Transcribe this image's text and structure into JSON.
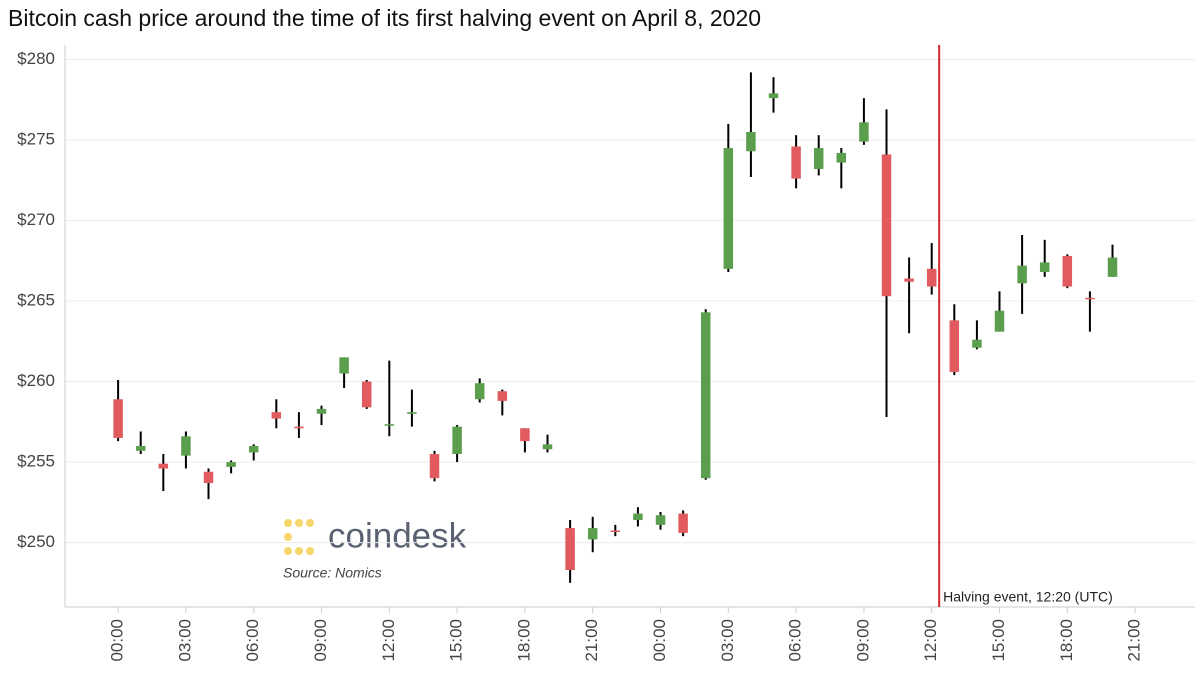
{
  "chart_data": {
    "type": "candlestick",
    "title": "Bitcoin cash price around the time of its first halving event on April 8, 2020",
    "x": [
      0,
      1,
      2,
      3,
      4,
      5,
      6,
      7,
      8,
      9,
      10,
      11,
      12,
      13,
      14,
      15,
      16,
      17,
      18,
      19,
      20,
      21,
      22,
      23,
      24,
      25,
      26,
      27,
      28,
      29,
      30,
      31,
      32,
      33,
      34,
      35,
      36,
      37,
      38,
      39,
      40,
      41,
      42,
      43,
      44
    ],
    "open": [
      258.9,
      255.7,
      254.9,
      255.4,
      254.4,
      254.7,
      255.6,
      258.1,
      257.2,
      258.0,
      260.5,
      260.0,
      257.3,
      258.0,
      255.5,
      255.5,
      258.9,
      259.4,
      257.1,
      255.8,
      250.9,
      250.2,
      250.75,
      251.4,
      251.1,
      251.8,
      254.0,
      267.0,
      274.3,
      277.6,
      274.6,
      273.2,
      273.6,
      274.9,
      274.1,
      266.4,
      267.0,
      263.8,
      262.1,
      263.1,
      266.1,
      266.8,
      267.8,
      265.2,
      266.5
    ],
    "high": [
      260.1,
      256.9,
      255.5,
      256.9,
      254.6,
      255.1,
      256.1,
      258.9,
      258.1,
      258.5,
      261.5,
      260.1,
      261.3,
      259.5,
      255.7,
      257.3,
      260.2,
      259.5,
      257.1,
      256.7,
      251.4,
      251.6,
      251.1,
      252.2,
      251.9,
      252.0,
      264.5,
      276.0,
      279.2,
      278.9,
      275.3,
      275.3,
      274.5,
      277.6,
      276.9,
      267.7,
      268.6,
      264.8,
      263.8,
      265.6,
      269.1,
      268.8,
      267.9,
      265.6,
      268.5
    ],
    "low": [
      256.3,
      255.5,
      253.2,
      254.6,
      252.7,
      254.3,
      255.1,
      257.1,
      256.5,
      257.3,
      259.6,
      258.3,
      256.6,
      257.2,
      253.8,
      255.0,
      258.7,
      257.9,
      255.6,
      255.6,
      247.5,
      249.4,
      250.4,
      251.0,
      250.8,
      250.4,
      253.9,
      266.8,
      272.7,
      276.7,
      272.0,
      272.8,
      272.0,
      274.7,
      257.8,
      263.0,
      265.4,
      260.4,
      262.0,
      263.1,
      264.2,
      266.5,
      265.8,
      263.1,
      266.5
    ],
    "close": [
      256.5,
      256.0,
      254.6,
      256.6,
      253.7,
      255.0,
      256.0,
      257.7,
      257.1,
      258.3,
      261.5,
      258.4,
      257.35,
      258.1,
      254.0,
      257.2,
      259.9,
      258.8,
      256.3,
      256.1,
      248.3,
      250.9,
      250.7,
      251.8,
      251.7,
      250.6,
      264.3,
      274.5,
      275.5,
      277.9,
      272.6,
      274.5,
      274.2,
      276.1,
      265.3,
      266.2,
      265.9,
      260.6,
      262.6,
      264.4,
      267.2,
      267.4,
      265.9,
      265.15,
      267.7
    ],
    "up_color": "#5b9e4d",
    "down_color": "#e05a5e",
    "wick_color": "#000000",
    "xlim": [
      -2.35,
      47.65
    ],
    "ylim": [
      246,
      280.9
    ],
    "yticks": [
      {
        "value": 250,
        "label": "$250"
      },
      {
        "value": 255,
        "label": "$255"
      },
      {
        "value": 260,
        "label": "$260"
      },
      {
        "value": 265,
        "label": "$265"
      },
      {
        "value": 270,
        "label": "$270"
      },
      {
        "value": 275,
        "label": "$275"
      },
      {
        "value": 280,
        "label": "$280"
      }
    ],
    "xticks": [
      {
        "value": 0,
        "label": "00:00"
      },
      {
        "value": 3,
        "label": "03:00"
      },
      {
        "value": 6,
        "label": "06:00"
      },
      {
        "value": 9,
        "label": "09:00"
      },
      {
        "value": 12,
        "label": "12:00"
      },
      {
        "value": 15,
        "label": "15:00"
      },
      {
        "value": 18,
        "label": "18:00"
      },
      {
        "value": 21,
        "label": "21:00"
      },
      {
        "value": 24,
        "label": "00:00"
      },
      {
        "value": 27,
        "label": "03:00"
      },
      {
        "value": 30,
        "label": "06:00"
      },
      {
        "value": 33,
        "label": "09:00"
      },
      {
        "value": 36,
        "label": "12:00"
      },
      {
        "value": 39,
        "label": "15:00"
      },
      {
        "value": 42,
        "label": "18:00"
      },
      {
        "value": 45,
        "label": "21:00"
      }
    ],
    "grid": true,
    "annotation": {
      "text": "Halving event, 12:20 (UTC)",
      "x": 36.33,
      "color": "#d62728"
    },
    "watermark": "coindesk",
    "source": "Source: Nomics"
  }
}
